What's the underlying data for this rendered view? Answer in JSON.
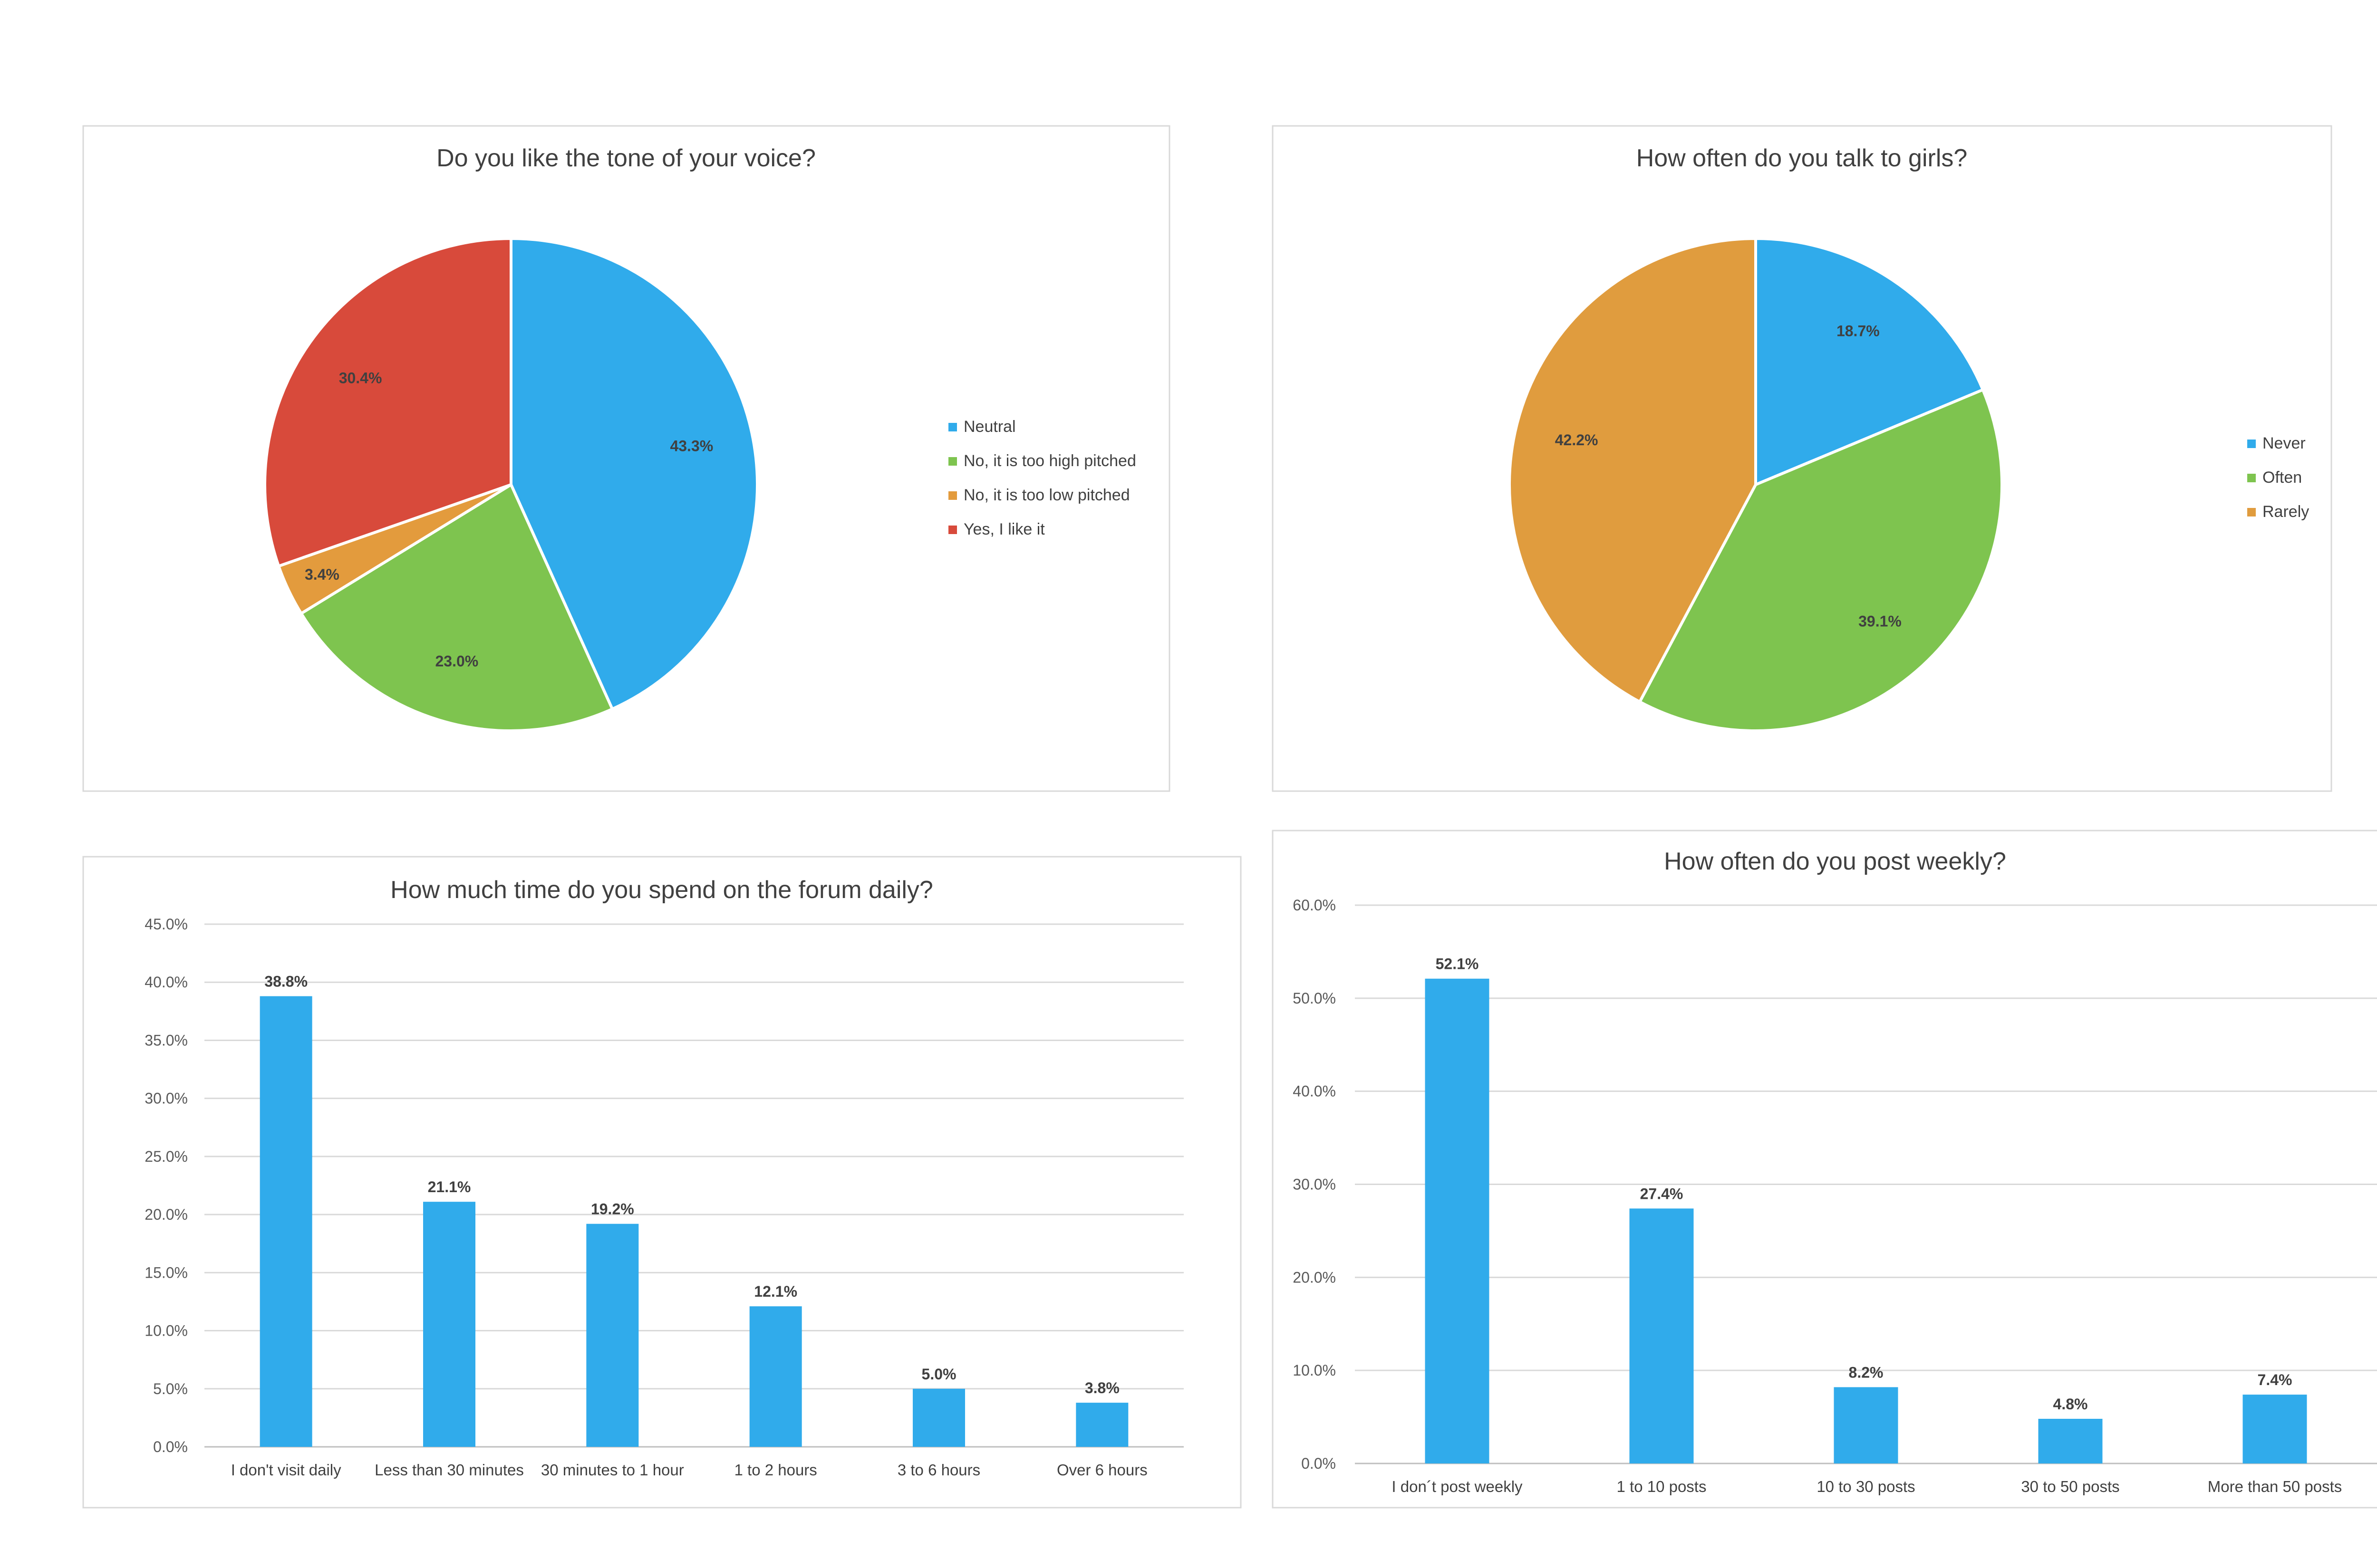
{
  "chart_data": [
    {
      "type": "pie",
      "title": "Do you like the tone of your voice?",
      "labels": [
        "Neutral",
        "No, it is too high pitched",
        "No, it is too low pitched",
        "Yes, I like it"
      ],
      "values": [
        43.3,
        23.0,
        3.4,
        30.4
      ],
      "data_labels": [
        "43.3%",
        "23.0%",
        "3.4%",
        "30.4%"
      ],
      "colors": [
        "#30ABEB",
        "#7EC44F",
        "#E39B3D",
        "#D84A3B"
      ],
      "legend_position": "right"
    },
    {
      "type": "pie",
      "title": "How often do you talk to girls?",
      "labels": [
        "Never",
        "Often",
        "Rarely"
      ],
      "values": [
        18.7,
        39.1,
        42.2
      ],
      "data_labels": [
        "18.7%",
        "39.1%",
        "42.2%"
      ],
      "colors": [
        "#30ABEB",
        "#7EC44F",
        "#E09C3E"
      ],
      "legend_position": "right"
    },
    {
      "type": "bar",
      "title": "How much time do you spend on the forum daily?",
      "categories": [
        "I don't visit daily",
        "Less than 30 minutes",
        "30 minutes to 1 hour",
        "1 to 2 hours",
        "3 to 6 hours",
        "Over 6 hours"
      ],
      "values": [
        38.8,
        21.1,
        19.2,
        12.1,
        5.0,
        3.8
      ],
      "data_labels": [
        "38.8%",
        "21.1%",
        "19.2%",
        "12.1%",
        "5.0%",
        "3.8%"
      ],
      "ylim": [
        0,
        45
      ],
      "yticks": [
        "0.0%",
        "5.0%",
        "10.0%",
        "15.0%",
        "20.0%",
        "25.0%",
        "30.0%",
        "35.0%",
        "40.0%",
        "45.0%"
      ],
      "grid": true,
      "color": "#30ABEB"
    },
    {
      "type": "bar",
      "title": "How often do you post weekly?",
      "categories": [
        "I don´t post weekly",
        "1 to 10 posts",
        "10 to 30 posts",
        "30 to 50 posts",
        "More than 50 posts"
      ],
      "values": [
        52.1,
        27.4,
        8.2,
        4.8,
        7.4
      ],
      "data_labels": [
        "52.1%",
        "27.4%",
        "8.2%",
        "4.8%",
        "7.4%"
      ],
      "ylim": [
        0,
        60
      ],
      "yticks": [
        "0.0%",
        "10.0%",
        "20.0%",
        "30.0%",
        "40.0%",
        "50.0%",
        "60.0%"
      ],
      "grid": true,
      "color": "#30ABEB"
    }
  ]
}
